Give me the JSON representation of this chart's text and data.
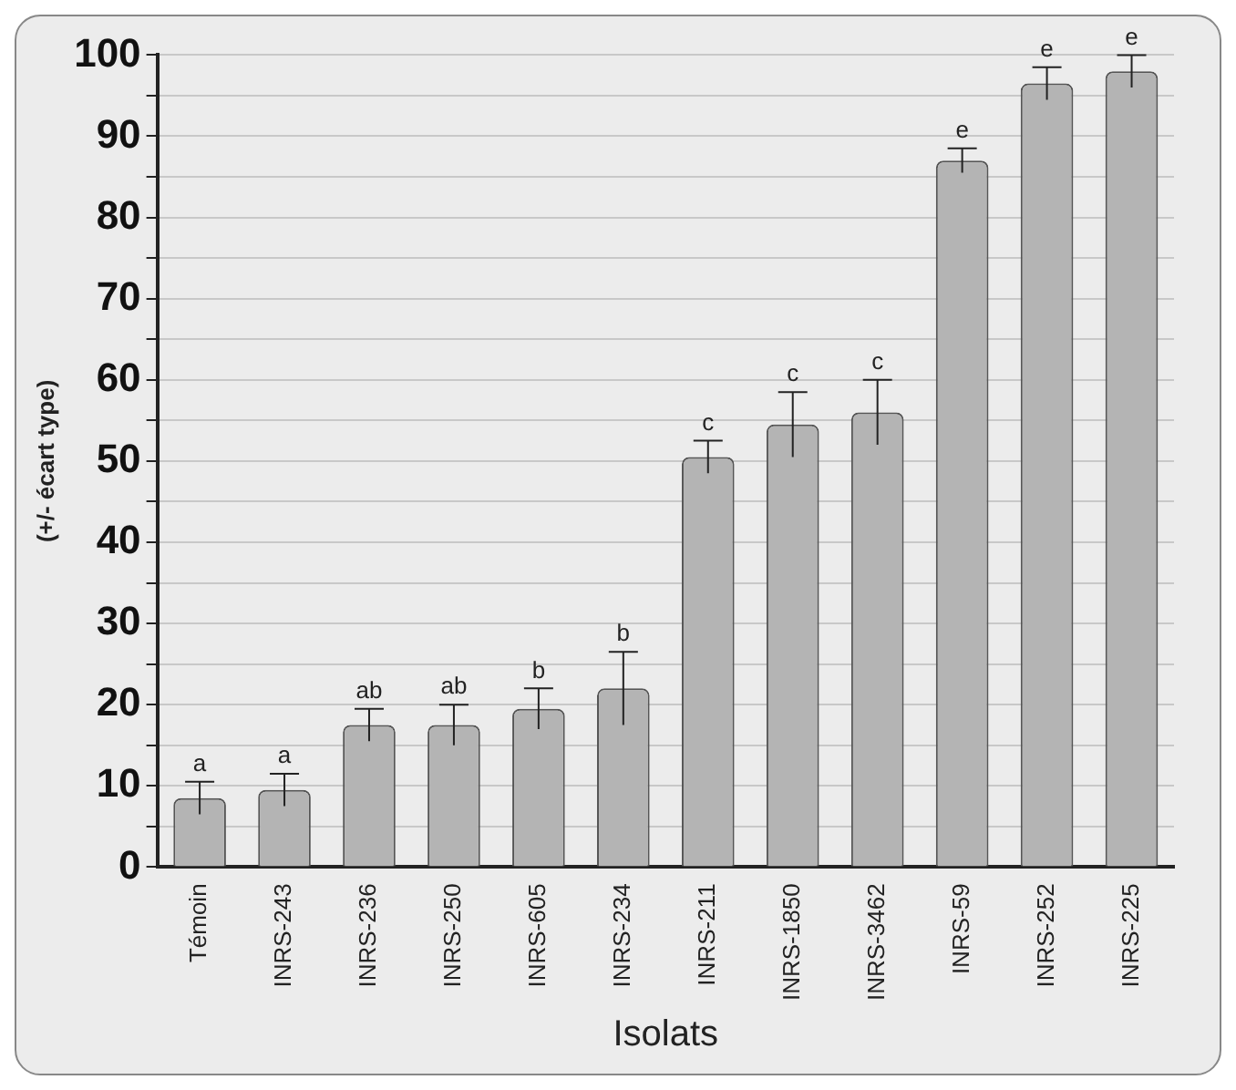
{
  "chart_data": {
    "type": "bar",
    "xlabel": "Isolats",
    "ylabel": "(+/- écart type)",
    "categories": [
      "Témoin",
      "INRS-243",
      "INRS-236",
      "INRS-250",
      "INRS-605",
      "INRS-234",
      "INRS-211",
      "INRS-1850",
      "INRS-3462",
      "INRS-59",
      "INRS-252",
      "INRS-225"
    ],
    "values": [
      8.5,
      9.5,
      17.5,
      17.5,
      19.5,
      22,
      50.5,
      54.5,
      56,
      87,
      96.5,
      98
    ],
    "errors": [
      2,
      2,
      2,
      2.5,
      2.5,
      4.5,
      2,
      4,
      4,
      1.5,
      2,
      2
    ],
    "color": "#b4b4b4",
    "ylim": [
      0,
      100
    ],
    "yticks": [
      0,
      {
        "value": 5,
        "label": null
      },
      10,
      {
        "value": 15,
        "label": null
      },
      20,
      {
        "value": 25,
        "label": null
      },
      30,
      {
        "value": 35,
        "label": null
      },
      40,
      {
        "value": 45,
        "label": null
      },
      50,
      {
        "value": 55,
        "label": null
      },
      60,
      {
        "value": 65,
        "label": null
      },
      70,
      {
        "value": 75,
        "label": null
      },
      80,
      {
        "value": 85,
        "label": null
      },
      90,
      {
        "value": 95,
        "label": null
      },
      100
    ],
    "grid": "y",
    "legend": false,
    "annotations": [
      "a",
      "a",
      "ab",
      "ab",
      "b",
      "b",
      "c",
      "c",
      "c",
      "e",
      "e",
      "e"
    ]
  }
}
